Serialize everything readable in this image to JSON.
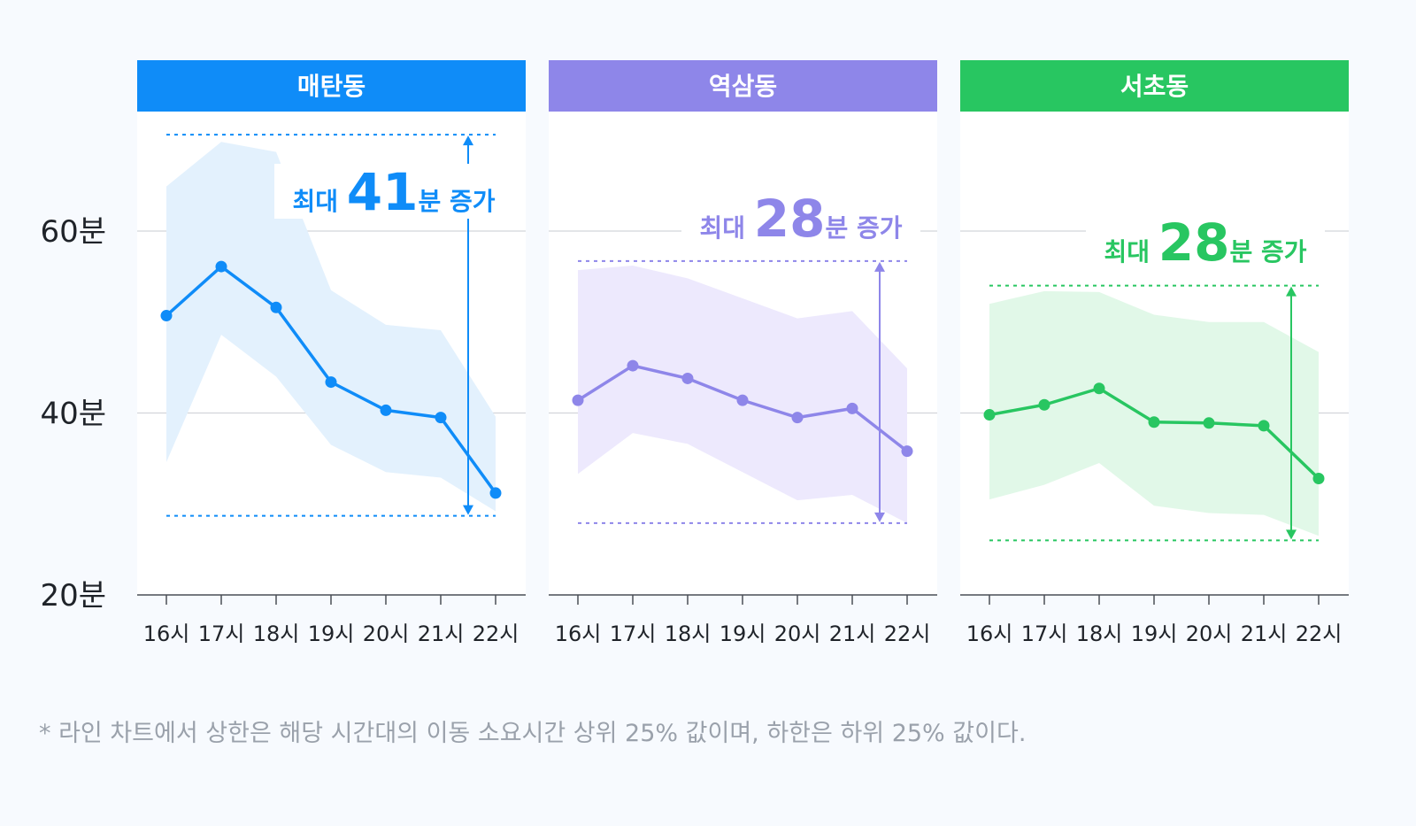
{
  "chart_data": [
    {
      "type": "line",
      "title": "매탄동",
      "color": "#0f8cf8",
      "band_color": "#e3f1fd",
      "categories": [
        "16시",
        "17시",
        "18시",
        "19시",
        "20시",
        "21시",
        "22시"
      ],
      "values": [
        50.7,
        56.1,
        51.6,
        43.4,
        40.3,
        39.5,
        31.2
      ],
      "upper": [
        64.9,
        69.8,
        68.7,
        53.5,
        49.7,
        49.1,
        39.6
      ],
      "lower": [
        34.6,
        48.6,
        44.0,
        36.5,
        33.5,
        32.9,
        29.2
      ],
      "range_top": 70.6,
      "range_bottom": 28.7,
      "annotation": {
        "prefix": "최대",
        "value": "41",
        "suffix": "분 증가"
      }
    },
    {
      "type": "line",
      "title": "역삼동",
      "color": "#8e86e9",
      "band_color": "#ede9fd",
      "categories": [
        "16시",
        "17시",
        "18시",
        "19시",
        "20시",
        "21시",
        "22시"
      ],
      "values": [
        41.4,
        45.2,
        43.8,
        41.4,
        39.5,
        40.5,
        35.8
      ],
      "upper": [
        55.7,
        56.2,
        54.8,
        52.6,
        50.4,
        51.2,
        44.9
      ],
      "lower": [
        33.3,
        37.8,
        36.6,
        33.5,
        30.4,
        31.0,
        27.9
      ],
      "range_top": 56.7,
      "range_bottom": 27.9,
      "annotation": {
        "prefix": "최대",
        "value": "28",
        "suffix": "분 증가"
      }
    },
    {
      "type": "line",
      "title": "서초동",
      "color": "#28c661",
      "band_color": "#e1f8e8",
      "categories": [
        "16시",
        "17시",
        "18시",
        "19시",
        "20시",
        "21시",
        "22시"
      ],
      "values": [
        39.8,
        40.9,
        42.7,
        39.0,
        38.9,
        38.6,
        32.8
      ],
      "upper": [
        52.0,
        53.4,
        53.3,
        50.8,
        50.0,
        50.0,
        46.7
      ],
      "lower": [
        30.5,
        32.1,
        34.5,
        29.8,
        29.0,
        28.8,
        26.5
      ],
      "range_top": 54.0,
      "range_bottom": 26.0,
      "annotation": {
        "prefix": "최대",
        "value": "28",
        "suffix": "분 증가"
      }
    }
  ],
  "y_axis": {
    "ticks": [
      60,
      40,
      20
    ],
    "tick_labels": [
      "60분",
      "40분",
      "20분"
    ],
    "ylim": [
      20,
      70
    ]
  },
  "grid": true,
  "footnote": "* 라인 차트에서 상한은 해당 시간대의 이동 소요시간 상위 25% 값이며, 하한은 하위 25% 값이다."
}
